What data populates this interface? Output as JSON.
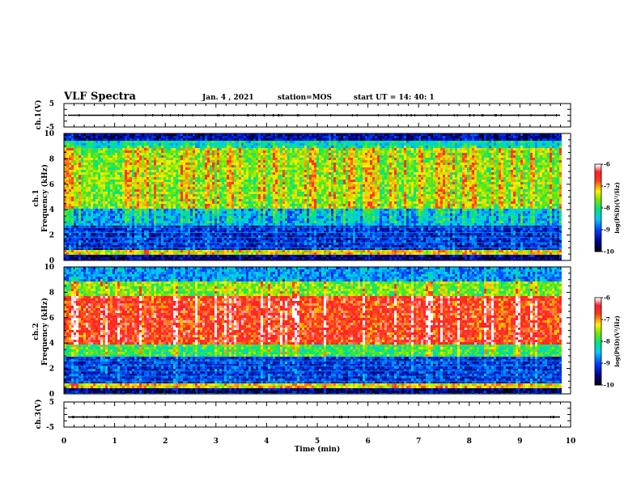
{
  "header": {
    "title": "VLF Spectra",
    "date": "Jan. 4 , 2021",
    "station": "station=MOS",
    "start": "start UT =  14: 40: 1"
  },
  "chart_data": [
    {
      "name": "ch1-waveform",
      "type": "line",
      "ylabel": "ch.1(V)",
      "ylim": [
        -5,
        5
      ],
      "yticks": [
        "5",
        "-5"
      ],
      "level": 0
    },
    {
      "name": "ch1-spectrogram",
      "type": "heatmap",
      "ylabel_line1": "ch.1",
      "ylabel_line2": "Frequency (kHz)",
      "ylim": [
        0,
        10
      ],
      "yticks": [
        "0",
        "2",
        "4",
        "6",
        "8",
        "10"
      ],
      "colorbar": {
        "label": "log(PSD)(V²/Hz)",
        "ticks": [
          "-6",
          "-7",
          "-8",
          "-9",
          "-10"
        ],
        "range": [
          -10,
          -6
        ]
      },
      "bands": [
        {
          "from": 0,
          "to": 0.4,
          "level": -9.6
        },
        {
          "from": 0.4,
          "to": 0.9,
          "level": -7.3
        },
        {
          "from": 0.9,
          "to": 2.7,
          "level": -9.2
        },
        {
          "from": 2.7,
          "to": 4.0,
          "level": -8.6
        },
        {
          "from": 4.0,
          "to": 8.8,
          "level": -7.6
        },
        {
          "from": 8.8,
          "to": 9.4,
          "level": -8.3
        },
        {
          "from": 9.4,
          "to": 10,
          "level": -9.5
        }
      ]
    },
    {
      "name": "ch2-spectrogram",
      "type": "heatmap",
      "ylabel_line1": "ch.2",
      "ylabel_line2": "Frequency (kHz)",
      "ylim": [
        0,
        10
      ],
      "yticks": [
        "0",
        "2",
        "4",
        "6",
        "8",
        "10"
      ],
      "colorbar": {
        "label": "log(PSD)(V²/Hz)",
        "ticks": [
          "-6",
          "-7",
          "-8",
          "-9",
          "-10"
        ],
        "range": [
          -10,
          -6
        ]
      },
      "bands": [
        {
          "from": 0,
          "to": 0.4,
          "level": -9.6
        },
        {
          "from": 0.4,
          "to": 0.9,
          "level": -7.2
        },
        {
          "from": 0.9,
          "to": 3.0,
          "level": -9.1
        },
        {
          "from": 3.0,
          "to": 3.8,
          "level": -7.9
        },
        {
          "from": 3.8,
          "to": 7.8,
          "level": -6.6
        },
        {
          "from": 7.8,
          "to": 8.8,
          "level": -7.6
        },
        {
          "from": 8.8,
          "to": 10,
          "level": -8.7
        }
      ]
    },
    {
      "name": "ch3-waveform",
      "type": "line",
      "ylabel": "ch.3(V)",
      "ylim": [
        -5,
        5
      ],
      "yticks": [
        "5",
        "-5"
      ],
      "level": -1
    }
  ],
  "xaxis": {
    "label": "Time (min)",
    "ticks": [
      "0",
      "1",
      "2",
      "3",
      "4",
      "5",
      "6",
      "7",
      "8",
      "9",
      "10"
    ],
    "xlim": [
      0,
      10
    ]
  }
}
